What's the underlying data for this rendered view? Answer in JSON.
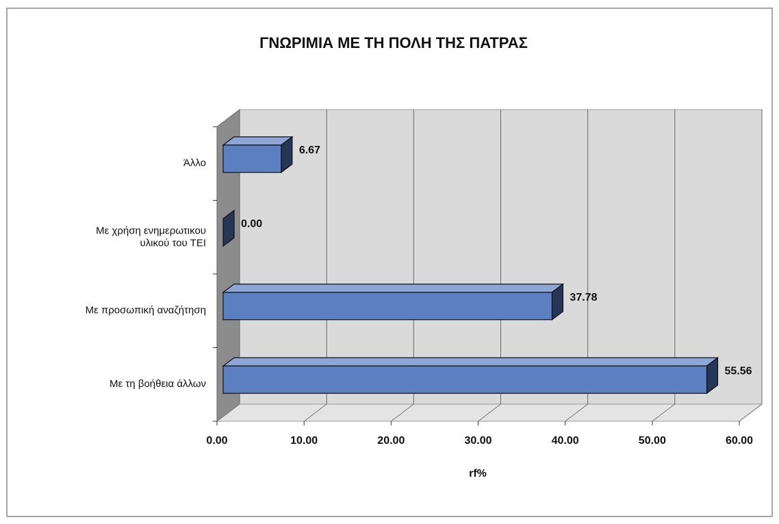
{
  "chart_data": {
    "type": "bar3d_horizontal",
    "title": "ΓΝΩΡΙΜΙΑ ΜΕ ΤΗ ΠΟΛΗ ΤΗΣ ΠΑΤΡΑΣ",
    "categories": [
      "Άλλο",
      "Με χρήση ενημερωτικου\nυλικού του ΤΕΙ",
      "Με προσωπική αναζήτηση",
      "Με τη βοήθεια άλλων"
    ],
    "values": [
      6.67,
      0,
      37.78,
      55.56
    ],
    "value_labels": [
      "6.67",
      "0.00",
      "37.78",
      "55.56"
    ],
    "color": "#5b7fc0",
    "xlim": [
      0,
      60
    ],
    "xticks": [
      {
        "value": 0,
        "label": "0.00"
      },
      {
        "value": 10,
        "label": "10.00"
      },
      {
        "value": 20,
        "label": "20.00"
      },
      {
        "value": 30,
        "label": "30.00"
      },
      {
        "value": 40,
        "label": "40.00"
      },
      {
        "value": 50,
        "label": "50.00"
      },
      {
        "value": 60,
        "label": "60.00"
      }
    ],
    "x_label": "rf%",
    "grid": true
  }
}
